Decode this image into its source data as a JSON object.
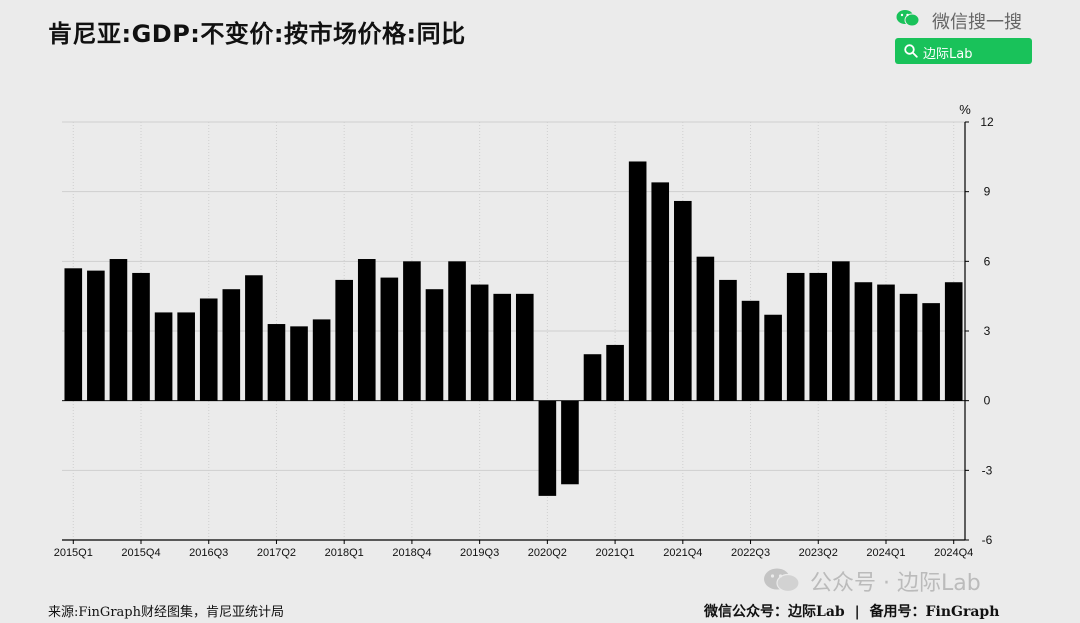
{
  "title": "肯尼亚:GDP:不变价:按市场价格:同比",
  "wechat_search": "微信搜一搜",
  "search_button": "边际Lab",
  "watermark": "公众号 · 边际Lab",
  "source": "来源:FinGraph财经图集，肯尼亚统计局",
  "footer": {
    "wechat_label": "微信公众号：边际Lab",
    "divider": "|",
    "backup_label": "备用号：FinGraph"
  },
  "colors": {
    "bar": "#000000",
    "grid": "#cfcfcf",
    "background": "#ebebeb",
    "accent": "#19c25a"
  },
  "chart_data": {
    "type": "bar",
    "title": "",
    "ylabel": "%",
    "ylim": [
      -6,
      12
    ],
    "yticks": [
      12,
      9,
      6,
      3,
      0,
      -3,
      -6
    ],
    "grid": true,
    "x": [
      "2015Q1",
      "2015Q2",
      "2015Q3",
      "2015Q4",
      "2016Q1",
      "2016Q2",
      "2016Q3",
      "2016Q4",
      "2017Q1",
      "2017Q2",
      "2017Q3",
      "2017Q4",
      "2018Q1",
      "2018Q2",
      "2018Q3",
      "2018Q4",
      "2019Q1",
      "2019Q2",
      "2019Q3",
      "2019Q4",
      "2020Q1",
      "2020Q2",
      "2020Q3",
      "2020Q4",
      "2021Q1",
      "2021Q2",
      "2021Q3",
      "2021Q4",
      "2022Q1",
      "2022Q2",
      "2022Q3",
      "2022Q4",
      "2023Q1",
      "2023Q2",
      "2023Q3",
      "2023Q4",
      "2024Q1",
      "2024Q2",
      "2024Q3",
      "2024Q4"
    ],
    "xtick_labels": [
      "2015Q1",
      "2015Q4",
      "2016Q3",
      "2017Q2",
      "2018Q1",
      "2018Q4",
      "2019Q3",
      "2020Q2",
      "2021Q1",
      "2021Q4",
      "2022Q3",
      "2023Q2",
      "2024Q1",
      "2024Q4"
    ],
    "values": [
      5.7,
      5.6,
      6.1,
      5.5,
      3.8,
      3.8,
      4.4,
      4.8,
      5.4,
      3.3,
      3.2,
      3.5,
      5.2,
      6.1,
      5.3,
      6.0,
      4.8,
      6.0,
      5.0,
      4.6,
      4.6,
      -4.1,
      -3.6,
      2.0,
      2.4,
      10.3,
      9.4,
      8.6,
      6.2,
      5.2,
      4.3,
      3.7,
      5.5,
      5.5,
      6.0,
      5.1,
      5.0,
      4.6,
      4.2,
      5.1
    ]
  }
}
